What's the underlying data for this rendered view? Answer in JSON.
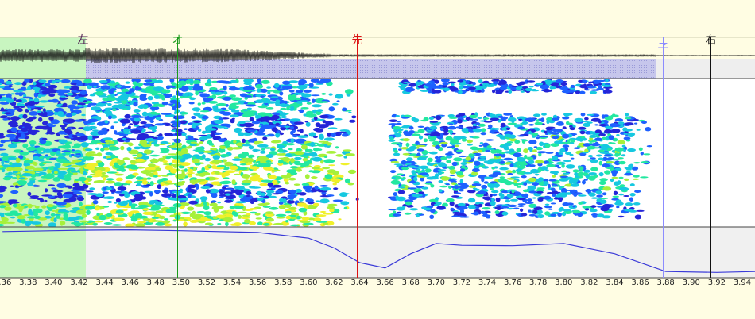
{
  "window": {
    "background": "#fffde3"
  },
  "markers": [
    {
      "id": "left",
      "label": "左",
      "time": 3.423,
      "color": "#4b1a4f"
    },
    {
      "id": "o",
      "label": "オ",
      "time": 3.497,
      "color": "#1a9a1a"
    },
    {
      "id": "start",
      "label": "先",
      "time": 3.638,
      "color": "#dd1111"
    },
    {
      "id": "ko",
      "label": "子",
      "time": 3.878,
      "color": "#8c8cff"
    },
    {
      "id": "right",
      "label": "右",
      "time": 3.915,
      "color": "#111111"
    }
  ],
  "axis": {
    "start": 3.358,
    "end": 3.95,
    "ticks": [
      "3.36",
      "3.38",
      "3.40",
      "3.42",
      "3.44",
      "3.46",
      "3.48",
      "3.50",
      "3.52",
      "3.54",
      "3.56",
      "3.58",
      "3.60",
      "3.62",
      "3.64",
      "3.66",
      "3.68",
      "3.70",
      "3.72",
      "3.74",
      "3.76",
      "3.78",
      "3.80",
      "3.82",
      "3.84",
      "3.86",
      "3.88",
      "3.90",
      "3.92",
      "3.94"
    ]
  },
  "colors": {
    "selection": "#c8f5c0",
    "panel": "#f0f0f0",
    "waveform_band": "#c8c8f0",
    "pitch": "#3a3ad8"
  },
  "pitch_curve": [
    [
      3.36,
      0.05
    ],
    [
      3.4,
      0.03
    ],
    [
      3.42,
      0.02
    ],
    [
      3.46,
      0.01
    ],
    [
      3.5,
      0.03
    ],
    [
      3.56,
      0.07
    ],
    [
      3.6,
      0.2
    ],
    [
      3.62,
      0.42
    ],
    [
      3.64,
      0.75
    ],
    [
      3.66,
      0.87
    ],
    [
      3.68,
      0.55
    ],
    [
      3.7,
      0.32
    ],
    [
      3.72,
      0.36
    ],
    [
      3.76,
      0.37
    ],
    [
      3.8,
      0.32
    ],
    [
      3.84,
      0.55
    ],
    [
      3.88,
      0.95
    ],
    [
      3.92,
      0.97
    ],
    [
      3.95,
      0.95
    ]
  ]
}
